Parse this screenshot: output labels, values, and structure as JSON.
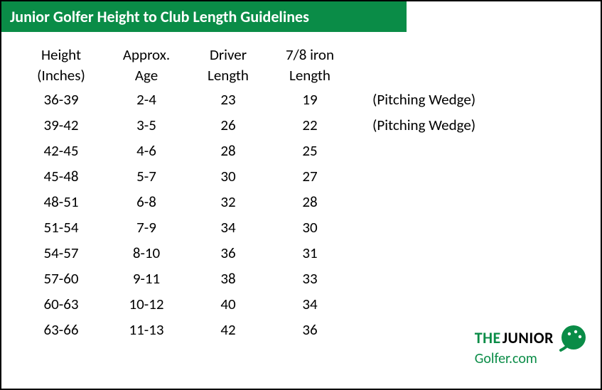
{
  "header": {
    "title": "Junior Golfer Height to Club Length Guidelines",
    "bg_color": "#0a8c47"
  },
  "table": {
    "columns": [
      {
        "line1": "Height",
        "line2": "(Inches)"
      },
      {
        "line1": "Approx.",
        "line2": "Age"
      },
      {
        "line1": "Driver",
        "line2": "Length"
      },
      {
        "line1": "7/8 iron",
        "line2": "Length"
      },
      {
        "line1": "",
        "line2": ""
      }
    ],
    "rows": [
      {
        "height": "36-39",
        "age": "2-4",
        "driver": "23",
        "iron": "19",
        "note": "(Pitching Wedge)"
      },
      {
        "height": "39-42",
        "age": "3-5",
        "driver": "26",
        "iron": "22",
        "note": "(Pitching Wedge)"
      },
      {
        "height": "42-45",
        "age": "4-6",
        "driver": "28",
        "iron": "25",
        "note": ""
      },
      {
        "height": "45-48",
        "age": "5-7",
        "driver": "30",
        "iron": "27",
        "note": ""
      },
      {
        "height": "48-51",
        "age": "6-8",
        "driver": "32",
        "iron": "28",
        "note": ""
      },
      {
        "height": "51-54",
        "age": "7-9",
        "driver": "34",
        "iron": "30",
        "note": ""
      },
      {
        "height": "54-57",
        "age": "8-10",
        "driver": "36",
        "iron": "31",
        "note": ""
      },
      {
        "height": "57-60",
        "age": "9-11",
        "driver": "38",
        "iron": "33",
        "note": ""
      },
      {
        "height": "60-63",
        "age": "10-12",
        "driver": "40",
        "iron": "34",
        "note": ""
      },
      {
        "height": "63-66",
        "age": "11-13",
        "driver": "42",
        "iron": "36",
        "note": ""
      }
    ]
  },
  "logo": {
    "the": "THE",
    "junior": "JUNIOR",
    "golfer": "Golfer",
    "com": ".com",
    "green": "#0a8c47"
  }
}
